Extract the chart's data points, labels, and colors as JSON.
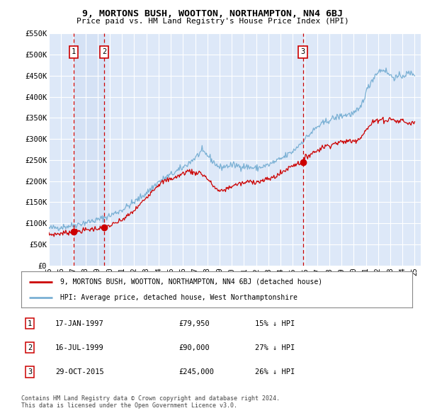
{
  "title": "9, MORTONS BUSH, WOOTTON, NORTHAMPTON, NN4 6BJ",
  "subtitle": "Price paid vs. HM Land Registry's House Price Index (HPI)",
  "ylim": [
    0,
    550000
  ],
  "yticks": [
    0,
    50000,
    100000,
    150000,
    200000,
    250000,
    300000,
    350000,
    400000,
    450000,
    500000,
    550000
  ],
  "ytick_labels": [
    "£0",
    "£50K",
    "£100K",
    "£150K",
    "£200K",
    "£250K",
    "£300K",
    "£350K",
    "£400K",
    "£450K",
    "£500K",
    "£550K"
  ],
  "xlim_start": 1995.0,
  "xlim_end": 2025.5,
  "plot_bg_color": "#dde8f8",
  "grid_color": "#ffffff",
  "sale_dates": [
    1997.04,
    1999.54,
    2015.83
  ],
  "sale_prices": [
    79950,
    90000,
    245000
  ],
  "sale_labels": [
    "1",
    "2",
    "3"
  ],
  "legend_entries": [
    "9, MORTONS BUSH, WOOTTON, NORTHAMPTON, NN4 6BJ (detached house)",
    "HPI: Average price, detached house, West Northamptonshire"
  ],
  "table_rows": [
    [
      "1",
      "17-JAN-1997",
      "£79,950",
      "15% ↓ HPI"
    ],
    [
      "2",
      "16-JUL-1999",
      "£90,000",
      "27% ↓ HPI"
    ],
    [
      "3",
      "29-OCT-2015",
      "£245,000",
      "26% ↓ HPI"
    ]
  ],
  "footnote": "Contains HM Land Registry data © Crown copyright and database right 2024.\nThis data is licensed under the Open Government Licence v3.0.",
  "red_line_color": "#cc0000",
  "blue_line_color": "#7ab0d4",
  "dashed_color": "#cc0000",
  "marker_color": "#cc0000",
  "box_color": "#cc0000",
  "shade_color": "#d0dff5"
}
